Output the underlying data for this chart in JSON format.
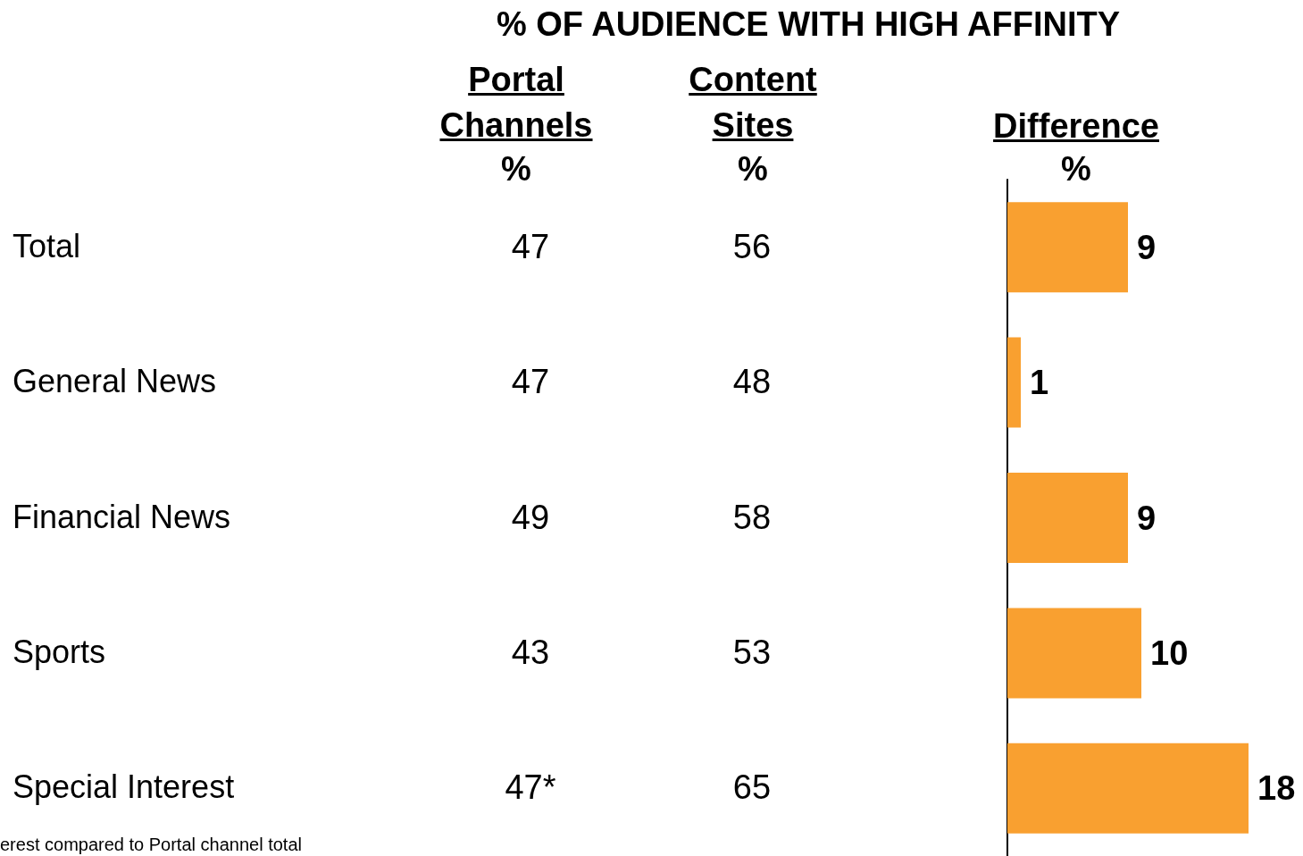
{
  "chart_data": [
    {
      "type": "other",
      "title": "% OF AUDIENCE WITH HIGH AFFINITY",
      "categories": [
        "Total",
        "General News",
        "Financial News",
        "Sports",
        "Special Interest"
      ],
      "series": [
        {
          "name": "Portal Channels",
          "values": [
            47,
            47,
            49,
            43,
            47
          ],
          "value_labels": [
            "47",
            "47",
            "49",
            "43",
            "47*"
          ]
        },
        {
          "name": "Content Sites",
          "values": [
            56,
            48,
            58,
            53,
            65
          ]
        }
      ],
      "annotations": [
        "%",
        "%",
        "erest compared to Portal channel total"
      ],
      "data_labels": true
    },
    {
      "type": "bar",
      "orientation": "horizontal",
      "title": "Difference",
      "xlabel": "%",
      "categories": [
        null,
        null,
        null,
        null,
        null
      ],
      "values": [
        9,
        1,
        9,
        10,
        18
      ],
      "color": "#f9a030",
      "data_labels": true
    }
  ]
}
